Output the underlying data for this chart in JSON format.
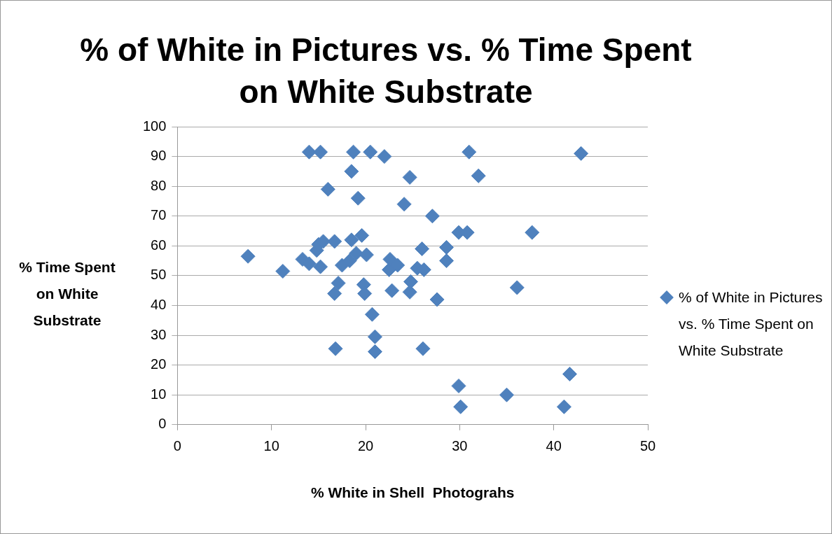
{
  "chart_data": {
    "type": "scatter",
    "title": "% of White in Pictures vs. % Time Spent on White Substrate",
    "xlabel": "% White in Shell  Photograhs",
    "ylabel": "% Time Spent on White Substrate",
    "xlim": [
      0,
      50
    ],
    "xticks": [
      0,
      10,
      20,
      30,
      40,
      50
    ],
    "ylim": [
      0,
      100
    ],
    "yticks": [
      0,
      10,
      20,
      30,
      40,
      50,
      60,
      70,
      80,
      90,
      100
    ],
    "grid": "y",
    "legend": "right",
    "marker": "diamond",
    "series": [
      {
        "name": "% of White in Pictures vs. % Time Spent on White Substrate",
        "color": "#4f81bd",
        "x": [
          7.5,
          11.2,
          13.3,
          14.0,
          14.0,
          15.2,
          14.8,
          15.0,
          15.5,
          15.2,
          16.0,
          16.7,
          16.7,
          17.1,
          16.8,
          17.5,
          18.3,
          18.5,
          18.5,
          18.7,
          19.0,
          19.2,
          19.6,
          19.8,
          19.9,
          20.1,
          20.5,
          20.7,
          21.0,
          21.0,
          22.0,
          22.5,
          22.6,
          22.8,
          23.4,
          24.1,
          24.7,
          24.7,
          24.8,
          25.5,
          26.0,
          26.1,
          26.2,
          27.1,
          27.6,
          28.6,
          28.6,
          29.9,
          29.9,
          30.1,
          30.8,
          31.0,
          32.0,
          35.0,
          36.1,
          37.7,
          41.1,
          41.7,
          42.9
        ],
        "values": [
          56.5,
          51.5,
          55.5,
          54,
          91.5,
          91.5,
          58.5,
          60.5,
          61.5,
          53,
          79,
          61.5,
          44,
          47.5,
          25.5,
          53.5,
          55,
          62,
          85,
          91.5,
          57.5,
          76,
          63.5,
          47,
          44,
          57,
          91.5,
          37,
          29.5,
          24.5,
          90,
          52,
          55.5,
          45,
          53.5,
          74,
          83,
          44.5,
          48,
          52.5,
          59,
          25.5,
          52,
          70,
          42,
          59.5,
          55,
          64.5,
          13,
          6,
          64.5,
          91.5,
          83.5,
          10,
          46,
          64.5,
          6,
          17,
          91
        ]
      }
    ]
  }
}
